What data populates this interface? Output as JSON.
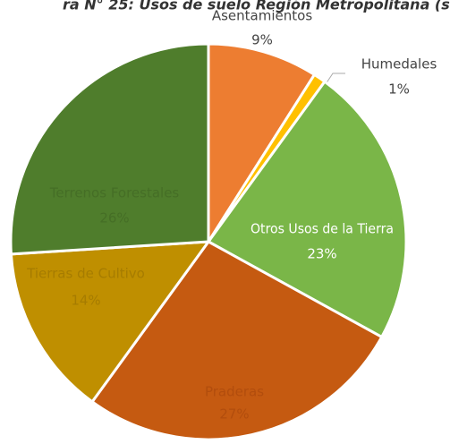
{
  "chart_data": {
    "type": "pie",
    "title": "ra N° 25: Usos de suelo Región Metropolitana (s",
    "categories": [
      "Asentamientos",
      "Humedales",
      "Otros Usos de la Tierra",
      "Praderas",
      "Tierras de Cultivo",
      "Terrenos Forestales"
    ],
    "values": [
      9,
      1,
      23,
      27,
      14,
      26
    ],
    "value_labels": [
      "9%",
      "1%",
      "23%",
      "27%",
      "14%",
      "26%"
    ],
    "colors": [
      "#ed7d31",
      "#ffc000",
      "#7ab648",
      "#c55a11",
      "#bf8f00",
      "#4f7d2c"
    ]
  }
}
